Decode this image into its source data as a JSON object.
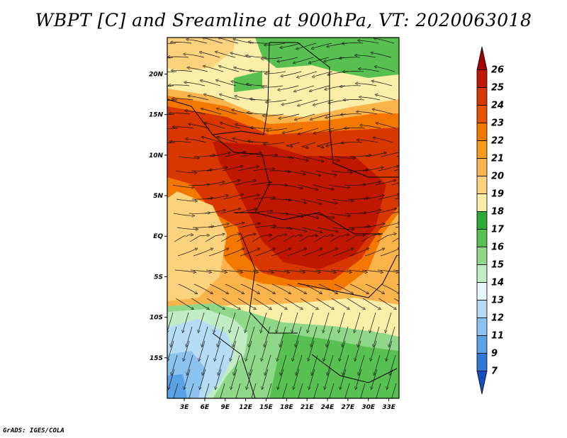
{
  "title": "WBPT [C] and Sreamline at 900hPa, VT: 2020063018",
  "footer": "GrADS: IGES/COLA",
  "map": {
    "lat_labels": [
      "20N",
      "15N",
      "10N",
      "5N",
      "EQ",
      "5S",
      "10S",
      "15S"
    ],
    "lat_values": [
      20,
      15,
      10,
      5,
      0,
      -5,
      -10,
      -15
    ],
    "lon_labels": [
      "3E",
      "6E",
      "9E",
      "12E",
      "15E",
      "18E",
      "21E",
      "24E",
      "27E",
      "30E",
      "33E"
    ],
    "lon_values": [
      3,
      6,
      9,
      12,
      15,
      18,
      21,
      24,
      27,
      30,
      33
    ],
    "lat_range": [
      -20,
      24.5
    ],
    "lon_range": [
      0.5,
      34.5
    ]
  },
  "colorbar": {
    "labels": [
      "26",
      "25",
      "24",
      "23",
      "22",
      "21",
      "20",
      "19",
      "18",
      "17",
      "16",
      "15",
      "14",
      "13",
      "12",
      "11",
      "9",
      "7"
    ],
    "colors": [
      "#a00000",
      "#c01800",
      "#d83800",
      "#e85200",
      "#f47800",
      "#f89a1a",
      "#fbb34b",
      "#fdd27e",
      "#fbeea8",
      "#2ea836",
      "#58c050",
      "#8fd88a",
      "#c2ecc4",
      "#e4f6f8",
      "#b6dcf4",
      "#8cc2ee",
      "#5aa2e6",
      "#2f78d8",
      "#1450c0"
    ]
  }
}
